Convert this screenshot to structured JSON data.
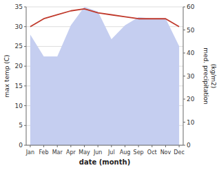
{
  "chart_data": {
    "type": "line",
    "categories": [
      "Jan",
      "Feb",
      "Mar",
      "Apr",
      "May",
      "Jun",
      "Jul",
      "Aug",
      "Sep",
      "Oct",
      "Nov",
      "Dec"
    ],
    "xlabel": "date (month)",
    "ylabel": "max temp (C)",
    "y2label": "med. precipitation\n(kg/m2)",
    "series": [
      {
        "type": "area",
        "axis": "y2",
        "color": "#c5cef0",
        "values": [
          48.0,
          38.5,
          38.5,
          52.0,
          60.0,
          58.0,
          46.0,
          52.0,
          55.5,
          55.0,
          55.0,
          43.0
        ]
      },
      {
        "type": "line",
        "color": "#c0392b",
        "values": [
          30.0,
          32.0,
          33.0,
          34.0,
          34.5,
          33.5,
          33.0,
          32.5,
          32.0,
          32.0,
          32.0,
          30.0
        ]
      }
    ],
    "ylim": [
      0,
      35
    ],
    "yticks": [
      0,
      5,
      10,
      15,
      20,
      25,
      30,
      35
    ],
    "y2lim": [
      0,
      60
    ],
    "y2ticks": [
      0,
      10,
      20,
      30,
      40,
      50,
      60
    ],
    "grid": true
  }
}
